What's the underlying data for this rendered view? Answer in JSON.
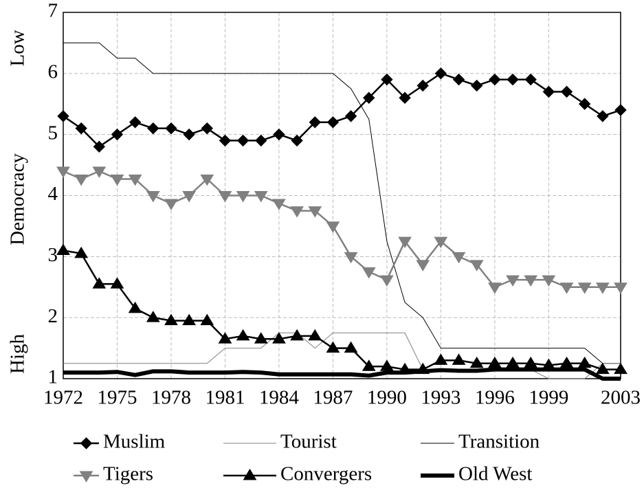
{
  "chart_data": {
    "type": "line",
    "y_label_words": [
      "Low",
      "Democracy",
      "High"
    ],
    "x": [
      1972,
      1973,
      1974,
      1975,
      1976,
      1977,
      1978,
      1979,
      1980,
      1981,
      1982,
      1983,
      1984,
      1985,
      1986,
      1987,
      1988,
      1989,
      1990,
      1991,
      1992,
      1993,
      1994,
      1995,
      1996,
      1997,
      1998,
      1999,
      2000,
      2001,
      2002,
      2003
    ],
    "xlim": [
      1972,
      2003
    ],
    "xticks": [
      1972,
      1975,
      1978,
      1981,
      1984,
      1987,
      1990,
      1993,
      1996,
      1999,
      2003
    ],
    "ylim": [
      1,
      7
    ],
    "yticks": [
      1,
      2,
      3,
      4,
      5,
      6,
      7
    ],
    "grid": true,
    "series": [
      {
        "name": "Muslim",
        "color": "#000000",
        "marker": "diamond",
        "style": "normal",
        "values": [
          5.3,
          5.1,
          4.8,
          5.0,
          5.2,
          5.1,
          5.1,
          5.0,
          5.1,
          4.9,
          4.9,
          4.9,
          5.0,
          4.9,
          5.2,
          5.2,
          5.3,
          5.6,
          5.9,
          5.6,
          5.8,
          6.0,
          5.9,
          5.8,
          5.9,
          5.9,
          5.9,
          5.7,
          5.7,
          5.5,
          5.3,
          5.4
        ]
      },
      {
        "name": "Tourist",
        "color": "#808080",
        "style": "thin",
        "values": [
          1.25,
          1.25,
          1.25,
          1.25,
          1.25,
          1.25,
          1.25,
          1.25,
          1.25,
          1.5,
          1.5,
          1.5,
          1.75,
          1.75,
          1.5,
          1.75,
          1.75,
          1.75,
          1.75,
          1.75,
          1.15,
          1.15,
          1.15,
          1.15,
          1.15,
          1.15,
          1.15,
          1.0,
          1.0,
          1.0,
          1.25,
          1.25
        ]
      },
      {
        "name": "Transition",
        "color": "#000000",
        "style": "thin",
        "values": [
          6.5,
          6.5,
          6.5,
          6.25,
          6.25,
          6.0,
          6.0,
          6.0,
          6.0,
          6.0,
          6.0,
          6.0,
          6.0,
          6.0,
          6.0,
          6.0,
          5.75,
          5.25,
          3.25,
          2.25,
          2.0,
          1.5,
          1.5,
          1.5,
          1.5,
          1.5,
          1.5,
          1.5,
          1.5,
          1.5,
          1.25,
          1.25
        ]
      },
      {
        "name": "Tigers",
        "color": "#808080",
        "marker": "triangle-down",
        "style": "normal",
        "values": [
          4.4,
          4.27,
          4.4,
          4.27,
          4.27,
          4.0,
          3.87,
          4.0,
          4.27,
          4.0,
          4.0,
          4.0,
          3.87,
          3.75,
          3.75,
          3.5,
          3.0,
          2.75,
          2.62,
          3.25,
          2.87,
          3.25,
          3.0,
          2.87,
          2.5,
          2.62,
          2.62,
          2.62,
          2.5,
          2.5,
          2.5,
          2.5
        ]
      },
      {
        "name": "Convergers",
        "color": "#000000",
        "marker": "triangle-up",
        "style": "normal",
        "values": [
          3.1,
          3.05,
          2.55,
          2.55,
          2.15,
          2.0,
          1.95,
          1.95,
          1.95,
          1.65,
          1.7,
          1.65,
          1.65,
          1.7,
          1.7,
          1.5,
          1.5,
          1.2,
          1.2,
          1.15,
          1.15,
          1.3,
          1.3,
          1.25,
          1.25,
          1.25,
          1.25,
          1.22,
          1.25,
          1.25,
          1.15,
          1.15
        ]
      },
      {
        "name": "Old West",
        "color": "#000000",
        "style": "thick",
        "values": [
          1.1,
          1.1,
          1.1,
          1.11,
          1.06,
          1.12,
          1.12,
          1.1,
          1.1,
          1.1,
          1.11,
          1.1,
          1.07,
          1.07,
          1.07,
          1.07,
          1.07,
          1.05,
          1.1,
          1.1,
          1.12,
          1.14,
          1.13,
          1.13,
          1.15,
          1.15,
          1.15,
          1.15,
          1.15,
          1.15,
          1.0,
          1.0
        ]
      }
    ]
  }
}
